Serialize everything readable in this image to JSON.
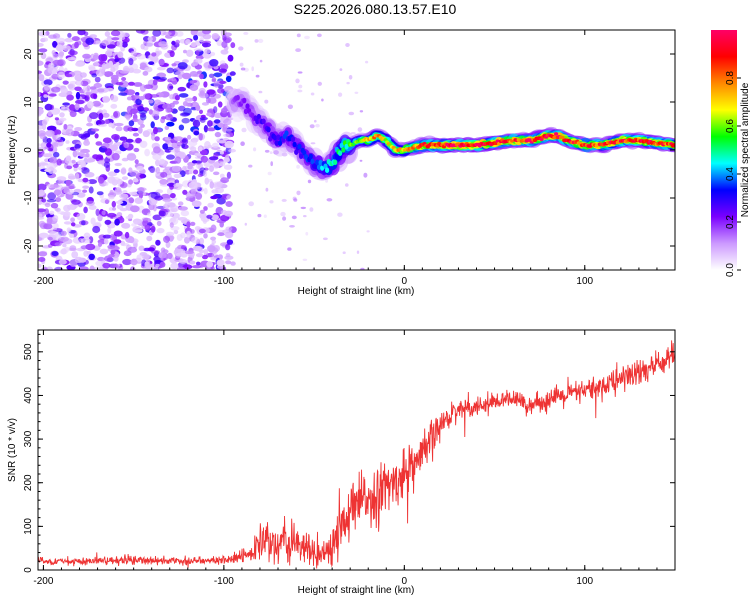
{
  "title": "S225.2026.080.13.57.E10",
  "chart_data": [
    {
      "type": "heatmap",
      "name": "spectrogram",
      "xlabel": "Height of straight line (km)",
      "ylabel": "Frequency (Hz)",
      "xlim": [
        -203,
        150
      ],
      "ylim": [
        -25,
        25
      ],
      "xticks": [
        -200,
        -100,
        0,
        100
      ],
      "xtick_labels": [
        "-200",
        "-100",
        "0",
        "100"
      ],
      "yticks": [
        -20,
        -10,
        0,
        10,
        20
      ],
      "ytick_labels": [
        "-20",
        "-10",
        "0",
        "10",
        "20"
      ],
      "noise_region_x": [
        -203,
        -95
      ],
      "noise_region_amplitude": [
        0.05,
        0.3
      ],
      "ridge": {
        "x": [
          -95,
          -90,
          -85,
          -80,
          -75,
          -70,
          -65,
          -60,
          -55,
          -50,
          -45,
          -40,
          -35,
          -30,
          -25,
          -20,
          -15,
          -10,
          -5,
          0,
          10,
          20,
          40,
          60,
          70,
          80,
          85,
          90,
          100,
          110,
          120,
          130,
          150
        ],
        "frequency": [
          10,
          10,
          8,
          6,
          4,
          2,
          3,
          1,
          -1,
          -3,
          -4,
          -3,
          0,
          1,
          2,
          2,
          3,
          2,
          0,
          0,
          1,
          1,
          1,
          2,
          2,
          3,
          3,
          2,
          1,
          1,
          2,
          2,
          1
        ],
        "amplitude": [
          0.18,
          0.2,
          0.22,
          0.25,
          0.28,
          0.3,
          0.32,
          0.3,
          0.32,
          0.35,
          0.4,
          0.45,
          0.5,
          0.55,
          0.6,
          0.7,
          0.75,
          0.65,
          0.7,
          0.72,
          0.85,
          0.92,
          0.95,
          0.85,
          0.9,
          0.92,
          0.92,
          0.88,
          0.85,
          0.85,
          0.9,
          0.9,
          0.85
        ]
      },
      "colorbar": {
        "label": "Normalized spectral amplitude",
        "range": [
          0,
          1
        ],
        "ticks": [
          0.0,
          0.2,
          0.4,
          0.6,
          0.8
        ],
        "tick_labels": [
          "0.0",
          "0.2",
          "0.4",
          "0.6",
          "0.8"
        ],
        "colormap": [
          "#ffffff",
          "#cc99ff",
          "#7a00ff",
          "#0000ff",
          "#00ffff",
          "#00ff00",
          "#ffff00",
          "#ff8800",
          "#ff0000",
          "#ff0066"
        ]
      }
    },
    {
      "type": "line",
      "name": "snr",
      "xlabel": "Height of straight line (km)",
      "ylabel": "SNR (10 * v/v)",
      "xlim": [
        -203,
        150
      ],
      "ylim": [
        0,
        550
      ],
      "xticks": [
        -200,
        -100,
        0,
        100
      ],
      "xtick_labels": [
        "-200",
        "-100",
        "0",
        "100"
      ],
      "yticks": [
        0,
        100,
        200,
        300,
        400,
        500
      ],
      "ytick_labels": [
        "0",
        "100",
        "200",
        "300",
        "400",
        "500"
      ],
      "series": [
        {
          "name": "SNR",
          "color": "#ee3333",
          "x": [
            -203,
            -180,
            -150,
            -120,
            -95,
            -85,
            -80,
            -75,
            -70,
            -65,
            -60,
            -55,
            -50,
            -45,
            -40,
            -35,
            -30,
            -25,
            -20,
            -15,
            -10,
            -5,
            0,
            5,
            10,
            15,
            20,
            25,
            30,
            40,
            50,
            60,
            70,
            80,
            90,
            100,
            110,
            120,
            130,
            140,
            150
          ],
          "mean": [
            20,
            20,
            22,
            20,
            25,
            35,
            60,
            70,
            50,
            60,
            70,
            45,
            40,
            35,
            50,
            80,
            130,
            150,
            170,
            170,
            190,
            200,
            220,
            240,
            260,
            300,
            330,
            355,
            370,
            375,
            385,
            390,
            380,
            390,
            400,
            410,
            420,
            440,
            450,
            470,
            495
          ],
          "spread": [
            8,
            8,
            10,
            8,
            10,
            20,
            40,
            40,
            40,
            50,
            50,
            40,
            35,
            30,
            50,
            60,
            60,
            60,
            60,
            60,
            55,
            50,
            50,
            50,
            45,
            40,
            30,
            25,
            20,
            18,
            18,
            18,
            18,
            20,
            22,
            25,
            28,
            30,
            30,
            30,
            30
          ]
        }
      ]
    }
  ]
}
